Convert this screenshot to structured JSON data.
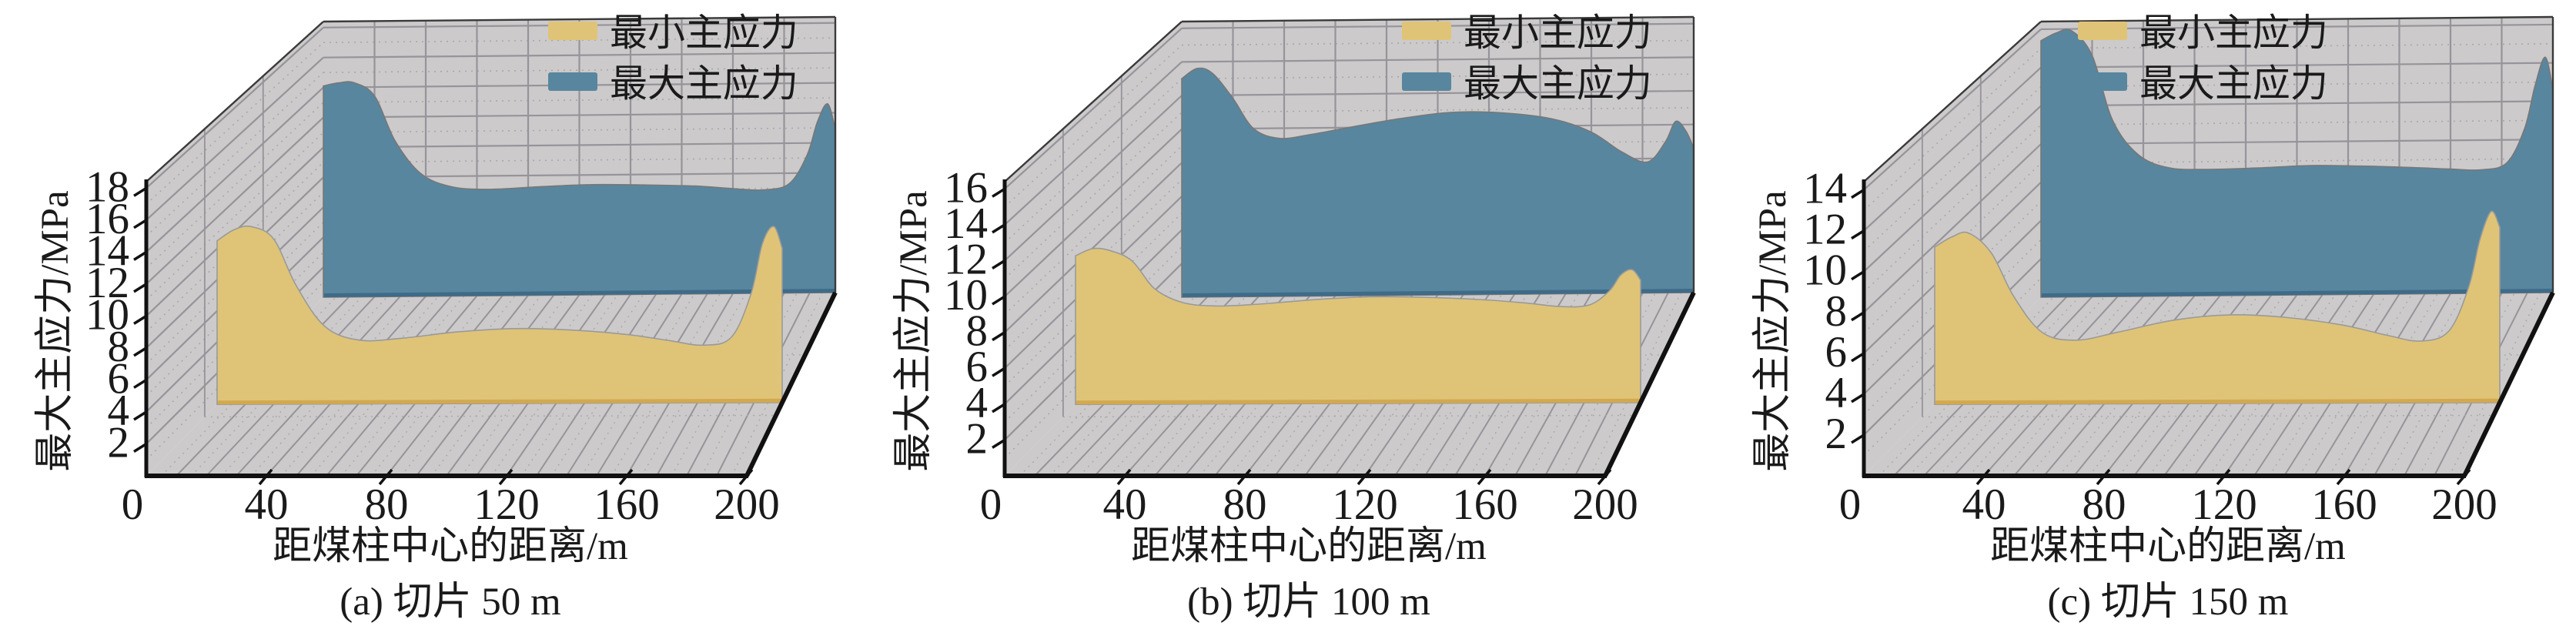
{
  "figure_background": "#ffffff",
  "legend": {
    "min_label": "最小主应力",
    "max_label": "最大主应力"
  },
  "colors": {
    "min_fill": "#dfc478",
    "min_base_strip": "#d2a94f",
    "min_outline": "#9a9a9a",
    "max_fill": "#58869f",
    "max_base_strip": "#3e6b88",
    "max_outline": "#777777",
    "wall_bg": "#cccaca",
    "grid_solid": "#96949a",
    "grid_dotted": "#a9a7a7",
    "box_edge": "#111111",
    "text": "#1a1a1a"
  },
  "chart_data": [
    {
      "type": "area",
      "caption": "(a) 切片 50 m",
      "xlabel": "距煤柱中心的距离/m",
      "ylabel": "最大主应力/MPa",
      "xlim": [
        0,
        200
      ],
      "ylim": [
        0,
        18
      ],
      "xticks": [
        0,
        40,
        80,
        120,
        160,
        200
      ],
      "yticks": [
        2,
        4,
        6,
        8,
        10,
        12,
        14,
        16,
        18
      ],
      "legend_position": {
        "x": 712,
        "y": 28
      },
      "x": [
        0,
        6,
        12,
        20,
        28,
        38,
        50,
        65,
        85,
        105,
        125,
        145,
        160,
        172,
        182,
        189,
        193,
        197,
        200
      ],
      "series": [
        {
          "name": "最小主应力",
          "depth": 0.4,
          "values": [
            10.5,
            11.2,
            11.4,
            10.6,
            7.6,
            5.0,
            4.1,
            4.2,
            4.6,
            4.8,
            4.7,
            4.4,
            4.0,
            3.7,
            4.2,
            7.0,
            10.2,
            11.3,
            9.9
          ]
        },
        {
          "name": "最大主应力",
          "depth": 1.0,
          "values": [
            14.1,
            14.3,
            14.3,
            13.4,
            10.4,
            8.2,
            7.3,
            7.1,
            7.25,
            7.35,
            7.3,
            7.2,
            7.0,
            6.9,
            7.3,
            9.2,
            11.4,
            12.6,
            10.9
          ]
        }
      ]
    },
    {
      "type": "area",
      "caption": "(b) 切片 100 m",
      "xlabel": "距煤柱中心的距离/m",
      "ylabel": "最大主应力/MPa",
      "xlim": [
        0,
        200
      ],
      "ylim": [
        0,
        16
      ],
      "xticks": [
        0,
        40,
        80,
        120,
        160,
        200
      ],
      "yticks": [
        2,
        4,
        6,
        8,
        10,
        12,
        14,
        16
      ],
      "legend_position": {
        "x": 706,
        "y": 28
      },
      "x": [
        0,
        6,
        12,
        20,
        28,
        38,
        50,
        65,
        85,
        105,
        125,
        145,
        160,
        172,
        182,
        189,
        193,
        197,
        200
      ],
      "series": [
        {
          "name": "最小主应力",
          "depth": 0.4,
          "values": [
            8.5,
            8.9,
            8.8,
            8.2,
            6.6,
            5.8,
            5.6,
            5.7,
            5.95,
            6.1,
            6.05,
            5.9,
            5.7,
            5.5,
            5.6,
            6.4,
            7.3,
            7.6,
            7.0
          ]
        },
        {
          "name": "最大主应力",
          "depth": 1.0,
          "values": [
            13.0,
            13.6,
            13.3,
            11.8,
            10.0,
            9.4,
            9.6,
            10.0,
            10.5,
            10.85,
            10.8,
            10.4,
            9.6,
            8.4,
            7.8,
            9.0,
            10.2,
            9.6,
            8.6
          ]
        }
      ]
    },
    {
      "type": "area",
      "caption": "(c) 切片 150 m",
      "xlabel": "距煤柱中心的距离/m",
      "ylabel": "最大主应力/MPa",
      "xlim": [
        0,
        200
      ],
      "ylim": [
        0,
        14
      ],
      "xticks": [
        0,
        40,
        80,
        120,
        160,
        200
      ],
      "yticks": [
        2,
        4,
        6,
        8,
        10,
        12,
        14
      ],
      "legend_position": {
        "x": 468,
        "y": 28
      },
      "x": [
        0,
        6,
        12,
        20,
        28,
        38,
        50,
        65,
        85,
        105,
        125,
        145,
        160,
        172,
        182,
        189,
        193,
        197,
        200
      ],
      "series": [
        {
          "name": "最小主应力",
          "depth": 0.4,
          "values": [
            7.9,
            8.4,
            8.6,
            7.6,
            5.4,
            3.6,
            3.2,
            3.6,
            4.2,
            4.45,
            4.3,
            3.9,
            3.4,
            3.1,
            3.6,
            5.8,
            8.2,
            9.6,
            8.8
          ]
        },
        {
          "name": "最大主应力",
          "depth": 1.0,
          "values": [
            13.4,
            13.8,
            13.9,
            12.6,
            9.2,
            7.4,
            6.7,
            6.6,
            6.65,
            6.75,
            6.7,
            6.6,
            6.5,
            6.45,
            6.8,
            8.6,
            10.8,
            12.3,
            10.6
          ]
        }
      ]
    }
  ]
}
